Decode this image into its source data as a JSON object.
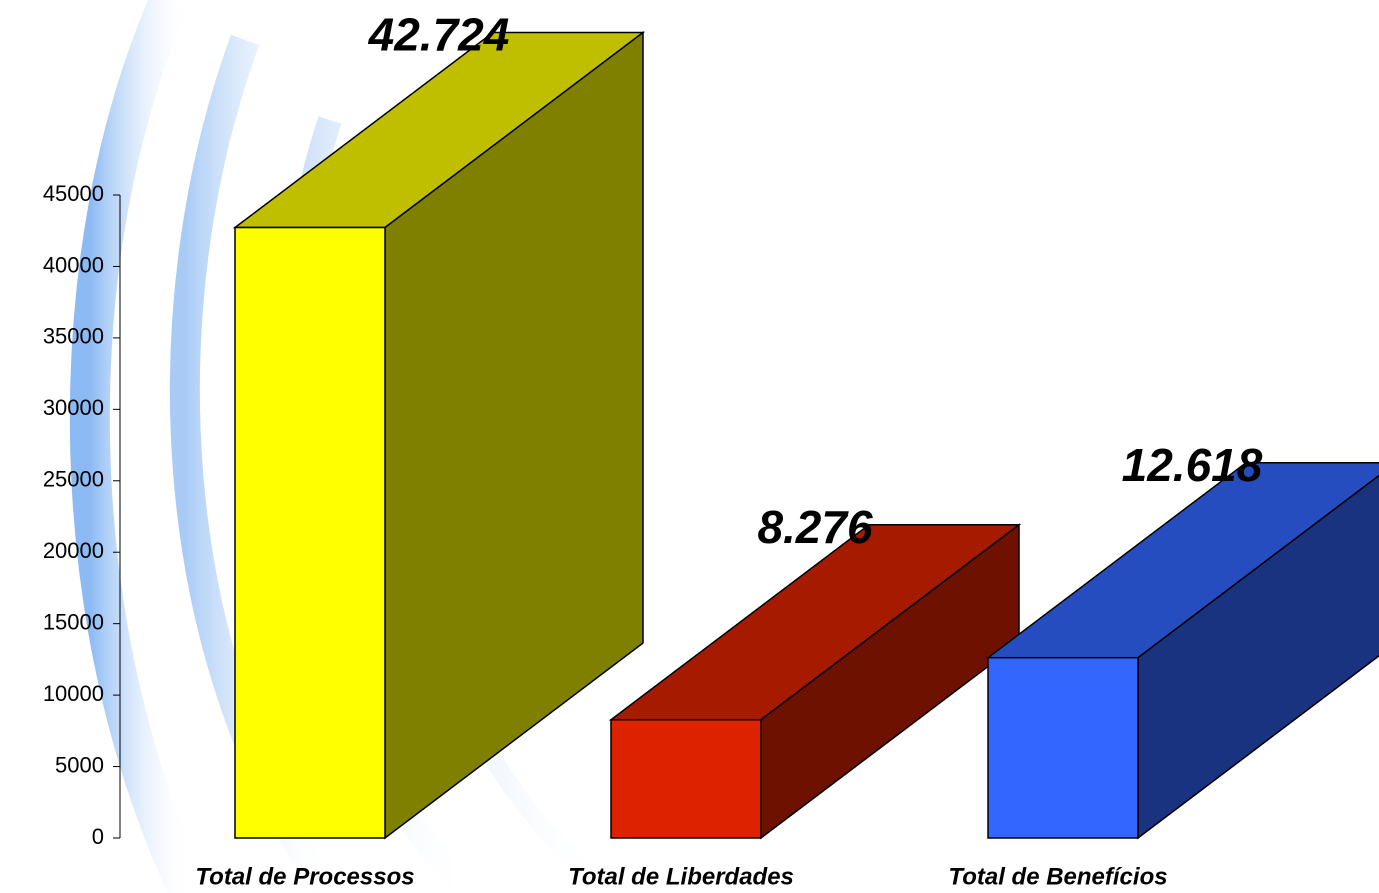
{
  "chart_data": {
    "type": "bar3d",
    "categories": [
      "Total de Processos",
      "Total de Liberdades",
      "Total de Benefícios"
    ],
    "values": [
      42724,
      8276,
      12618
    ],
    "value_labels": [
      "42.724",
      "8.276",
      "12.618"
    ],
    "colors": [
      "#ffff00",
      "#dd2200",
      "#3366ff"
    ],
    "ylim": [
      0,
      45000
    ],
    "yticks": [
      0,
      5000,
      10000,
      15000,
      20000,
      25000,
      30000,
      35000,
      40000,
      45000
    ]
  }
}
